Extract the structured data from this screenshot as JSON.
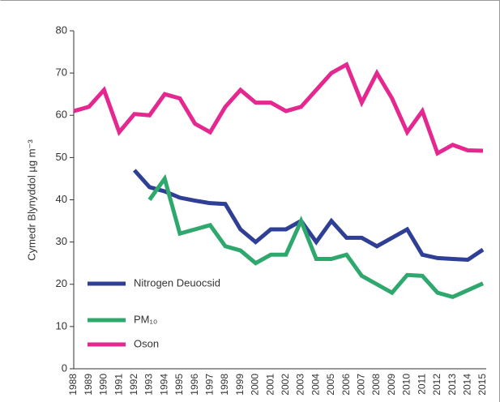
{
  "chart_data": {
    "type": "line",
    "ylabel": "Cymedr Blynyddol µg m⁻³",
    "categories": [
      "1988",
      "1989",
      "1990",
      "1991",
      "1992",
      "1993",
      "1994",
      "1995",
      "1996",
      "1997",
      "1998",
      "1999",
      "2000",
      "2001",
      "2002",
      "2003",
      "2004",
      "2005",
      "2006",
      "2007",
      "2008",
      "2009",
      "2010",
      "2011",
      "2012",
      "2013",
      "2014",
      "2015"
    ],
    "series": [
      {
        "name": "Nitrogen Deuocsid",
        "color": "#2e3f95",
        "values": [
          null,
          null,
          null,
          null,
          47,
          43,
          42,
          40.5,
          39.8,
          39.2,
          39,
          33,
          30,
          33,
          33,
          35,
          30,
          35,
          31,
          31,
          29,
          31,
          33,
          27,
          26.2,
          26,
          25.8,
          28.2
        ]
      },
      {
        "name": "PM₁₀",
        "color": "#2fa86e",
        "values": [
          null,
          null,
          null,
          null,
          null,
          40,
          45,
          32,
          33,
          34,
          29,
          28,
          25,
          27,
          27,
          35,
          26,
          26,
          27,
          22,
          20,
          18,
          22.2,
          22,
          18,
          17,
          18.6,
          20.2
        ]
      },
      {
        "name": "Oson",
        "color": "#e5288f",
        "values": [
          61,
          62,
          66,
          56,
          60.3,
          60,
          65,
          64,
          58,
          56,
          62,
          66,
          63,
          63,
          61,
          62,
          66,
          70,
          72,
          63,
          70,
          64,
          56,
          61,
          51,
          53,
          51.7,
          51.6
        ]
      }
    ],
    "ylim": [
      0,
      80
    ],
    "yticks": [
      0,
      10,
      20,
      30,
      40,
      50,
      60,
      70,
      80
    ]
  }
}
